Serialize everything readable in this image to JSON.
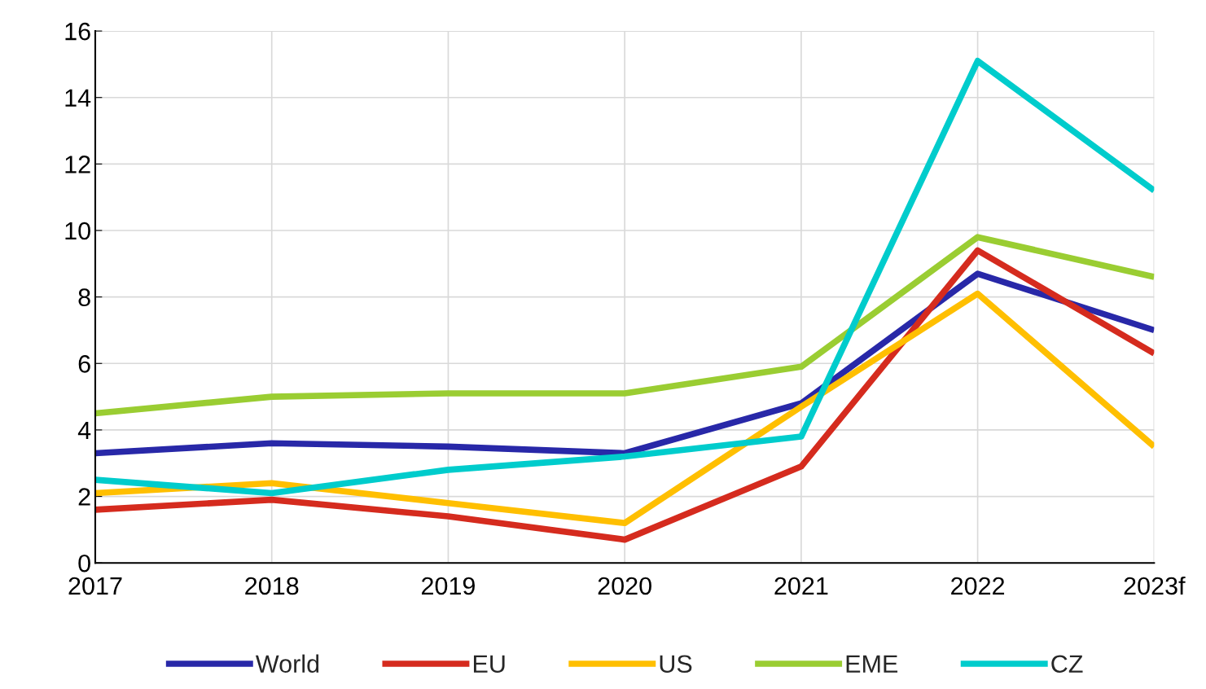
{
  "chart_data": {
    "type": "line",
    "categories": [
      "2017",
      "2018",
      "2019",
      "2020",
      "2021",
      "2022",
      "2023f"
    ],
    "series": [
      {
        "name": "World",
        "color": "#2828a8",
        "values": [
          3.3,
          3.6,
          3.5,
          3.3,
          4.8,
          8.7,
          7.0
        ]
      },
      {
        "name": "EU",
        "color": "#d52b1e",
        "values": [
          1.6,
          1.9,
          1.4,
          0.7,
          2.9,
          9.4,
          6.3
        ]
      },
      {
        "name": "US",
        "color": "#ffbf00",
        "values": [
          2.1,
          2.4,
          1.8,
          1.2,
          4.7,
          8.1,
          3.5
        ]
      },
      {
        "name": "EME",
        "color": "#9acd32",
        "values": [
          4.5,
          5.0,
          5.1,
          5.1,
          5.9,
          9.8,
          8.6
        ]
      },
      {
        "name": "CZ",
        "color": "#00cccc",
        "values": [
          2.5,
          2.1,
          2.8,
          3.2,
          3.8,
          15.1,
          11.2
        ]
      }
    ],
    "ylim": [
      0,
      16
    ],
    "yticks": [
      0,
      2,
      4,
      6,
      8,
      10,
      12,
      14,
      16
    ],
    "grid": true,
    "legend": "bottom",
    "marker": "none",
    "line_style": "solid"
  }
}
